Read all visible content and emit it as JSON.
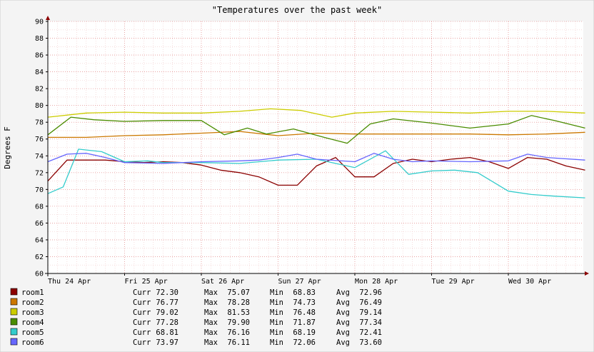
{
  "chart_data": {
    "type": "line",
    "title": "\"Temperatures over the past week\"",
    "ylabel": "Degrees F",
    "xlabel": "",
    "ylim": [
      60,
      90
    ],
    "yticks": [
      60,
      62,
      64,
      66,
      68,
      70,
      72,
      74,
      76,
      78,
      80,
      82,
      84,
      86,
      88,
      90
    ],
    "xlim": [
      0,
      7
    ],
    "xtick_positions": [
      0,
      1,
      2,
      3,
      4,
      5,
      6
    ],
    "xtick_labels": [
      "Thu 24 Apr",
      "Fri 25 Apr",
      "Sat 26 Apr",
      "Sun 27 Apr",
      "Mon 28 Apr",
      "Tue 29 Apr",
      "Wed 30 Apr"
    ],
    "grid": true,
    "legend_position": "bottom",
    "stat_labels": [
      "Curr",
      "Max",
      "Min",
      "Avg"
    ],
    "series": [
      {
        "name": "room1",
        "color": "#8b0000",
        "curr": "72.30",
        "max": "75.07",
        "min": "68.83",
        "avg": "72.96",
        "x": [
          0,
          0.25,
          0.5,
          0.75,
          1,
          1.25,
          1.5,
          1.75,
          2,
          2.25,
          2.5,
          2.75,
          3,
          3.25,
          3.5,
          3.75,
          4,
          4.25,
          4.5,
          4.75,
          5,
          5.25,
          5.5,
          5.75,
          6,
          6.25,
          6.5,
          6.75,
          7
        ],
        "y": [
          71,
          73.5,
          73.5,
          73.5,
          73.3,
          73.2,
          73.3,
          73.2,
          72.9,
          72.3,
          72,
          71.5,
          70.5,
          70.5,
          72.8,
          73.8,
          71.5,
          71.5,
          73.1,
          73.6,
          73.3,
          73.6,
          73.8,
          73.3,
          72.5,
          73.8,
          73.6,
          72.8,
          72.3
        ]
      },
      {
        "name": "room2",
        "color": "#cc7700",
        "curr": "76.77",
        "max": "78.28",
        "min": "74.73",
        "avg": "76.49",
        "x": [
          0,
          0.5,
          1,
          1.5,
          2,
          2.5,
          3,
          3.5,
          4,
          4.5,
          5,
          5.5,
          6,
          6.5,
          7
        ],
        "y": [
          76.2,
          76.2,
          76.4,
          76.5,
          76.7,
          76.9,
          76.4,
          76.7,
          76.6,
          76.6,
          76.6,
          76.6,
          76.5,
          76.6,
          76.8
        ]
      },
      {
        "name": "room3",
        "color": "#cccc00",
        "curr": "79.02",
        "max": "81.53",
        "min": "76.48",
        "avg": "79.14",
        "x": [
          0,
          0.5,
          1,
          1.5,
          2,
          2.5,
          2.9,
          3.3,
          3.7,
          4,
          4.5,
          5,
          5.5,
          6,
          6.5,
          7
        ],
        "y": [
          78.6,
          79.1,
          79.2,
          79.1,
          79.1,
          79.3,
          79.6,
          79.4,
          78.6,
          79.1,
          79.3,
          79.2,
          79.1,
          79.3,
          79.3,
          79.1
        ]
      },
      {
        "name": "room4",
        "color": "#4a8c00",
        "curr": "77.28",
        "max": "79.90",
        "min": "71.87",
        "avg": "77.34",
        "x": [
          0,
          0.3,
          0.6,
          1,
          1.5,
          2,
          2.3,
          2.6,
          2.85,
          3.2,
          3.6,
          3.9,
          4.2,
          4.5,
          5,
          5.5,
          6,
          6.3,
          6.6,
          7
        ],
        "y": [
          76.5,
          78.6,
          78.3,
          78.1,
          78.2,
          78.2,
          76.5,
          77.3,
          76.6,
          77.2,
          76.2,
          75.5,
          77.8,
          78.4,
          77.9,
          77.3,
          77.8,
          78.8,
          78.2,
          77.3
        ]
      },
      {
        "name": "room5",
        "color": "#33cccc",
        "curr": "68.81",
        "max": "76.16",
        "min": "68.19",
        "avg": "72.41",
        "x": [
          0,
          0.2,
          0.4,
          0.7,
          1,
          1.3,
          1.5,
          2,
          2.5,
          3,
          3.5,
          4,
          4.4,
          4.7,
          5,
          5.3,
          5.6,
          6,
          6.3,
          6.6,
          7
        ],
        "y": [
          69.5,
          70.3,
          74.8,
          74.5,
          73.3,
          73.4,
          73.2,
          73.2,
          73.1,
          73.5,
          73.6,
          72.6,
          74.6,
          71.8,
          72.2,
          72.3,
          72,
          69.8,
          69.4,
          69.2,
          69
        ]
      },
      {
        "name": "room6",
        "color": "#6666ff",
        "curr": "73.97",
        "max": "76.11",
        "min": "72.06",
        "avg": "73.60",
        "x": [
          0,
          0.25,
          0.5,
          0.75,
          1,
          1.5,
          2,
          2.5,
          2.75,
          3,
          3.25,
          3.5,
          4,
          4.25,
          4.5,
          4.75,
          5,
          5.5,
          6,
          6.25,
          6.5,
          7
        ],
        "y": [
          73.3,
          74.2,
          74.3,
          73.8,
          73.2,
          73.1,
          73.3,
          73.4,
          73.5,
          73.8,
          74.2,
          73.6,
          73.3,
          74.3,
          73.6,
          73.3,
          73.4,
          73.3,
          73.4,
          74.2,
          73.8,
          73.5
        ]
      }
    ]
  }
}
